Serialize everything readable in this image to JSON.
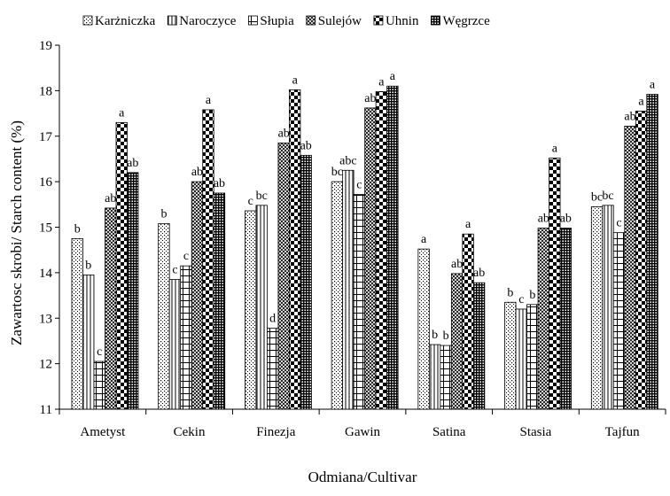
{
  "chart_data": {
    "type": "bar",
    "title": "",
    "xlabel": "Odmiana/Cultivar",
    "ylabel": "Zawartosc skrobi/ Starch content (%)",
    "ylim": [
      11,
      19
    ],
    "yticks": [
      11,
      12,
      13,
      14,
      15,
      16,
      17,
      18,
      19
    ],
    "grid": false,
    "legend_position": "top",
    "categories": [
      "Ametyst",
      "Cekin",
      "Finezja",
      "Gawin",
      "Satina",
      "Stasia",
      "Tajfun"
    ],
    "series": [
      {
        "name": "Karżniczka",
        "values": [
          14.75,
          15.08,
          15.36,
          16.0,
          14.52,
          13.35,
          15.45
        ],
        "labels": [
          "b",
          "b",
          "c",
          "bc",
          "a",
          "b",
          "bc"
        ]
      },
      {
        "name": "Naroczyce",
        "values": [
          13.95,
          13.85,
          15.48,
          16.25,
          12.42,
          13.2,
          15.48
        ],
        "labels": [
          "b",
          "c",
          "bc",
          "abc",
          "b",
          "c",
          "bc"
        ]
      },
      {
        "name": "Słupia",
        "values": [
          12.05,
          14.15,
          12.78,
          15.72,
          12.4,
          13.3,
          14.88
        ],
        "labels": [
          "c",
          "c",
          "d",
          "c",
          "b",
          "b",
          "c"
        ]
      },
      {
        "name": "Sulejów",
        "values": [
          15.42,
          16.0,
          16.85,
          17.62,
          13.98,
          14.98,
          17.22
        ],
        "labels": [
          "ab",
          "ab",
          "ab",
          "ab",
          "ab",
          "ab",
          "ab"
        ]
      },
      {
        "name": "Uhnin",
        "values": [
          17.3,
          17.58,
          18.02,
          17.98,
          14.85,
          16.52,
          17.55
        ],
        "labels": [
          "a",
          "a",
          "a",
          "a",
          "a",
          "a",
          "a"
        ]
      },
      {
        "name": "Węgrzce",
        "values": [
          16.2,
          15.75,
          16.58,
          18.1,
          13.78,
          14.98,
          17.92
        ],
        "labels": [
          "ab",
          "ab",
          "ab",
          "a",
          "ab",
          "ab",
          "a"
        ]
      }
    ],
    "patterns": [
      "dots",
      "vertical-lines",
      "grid",
      "crosshatch",
      "checker",
      "dense-grid"
    ]
  }
}
